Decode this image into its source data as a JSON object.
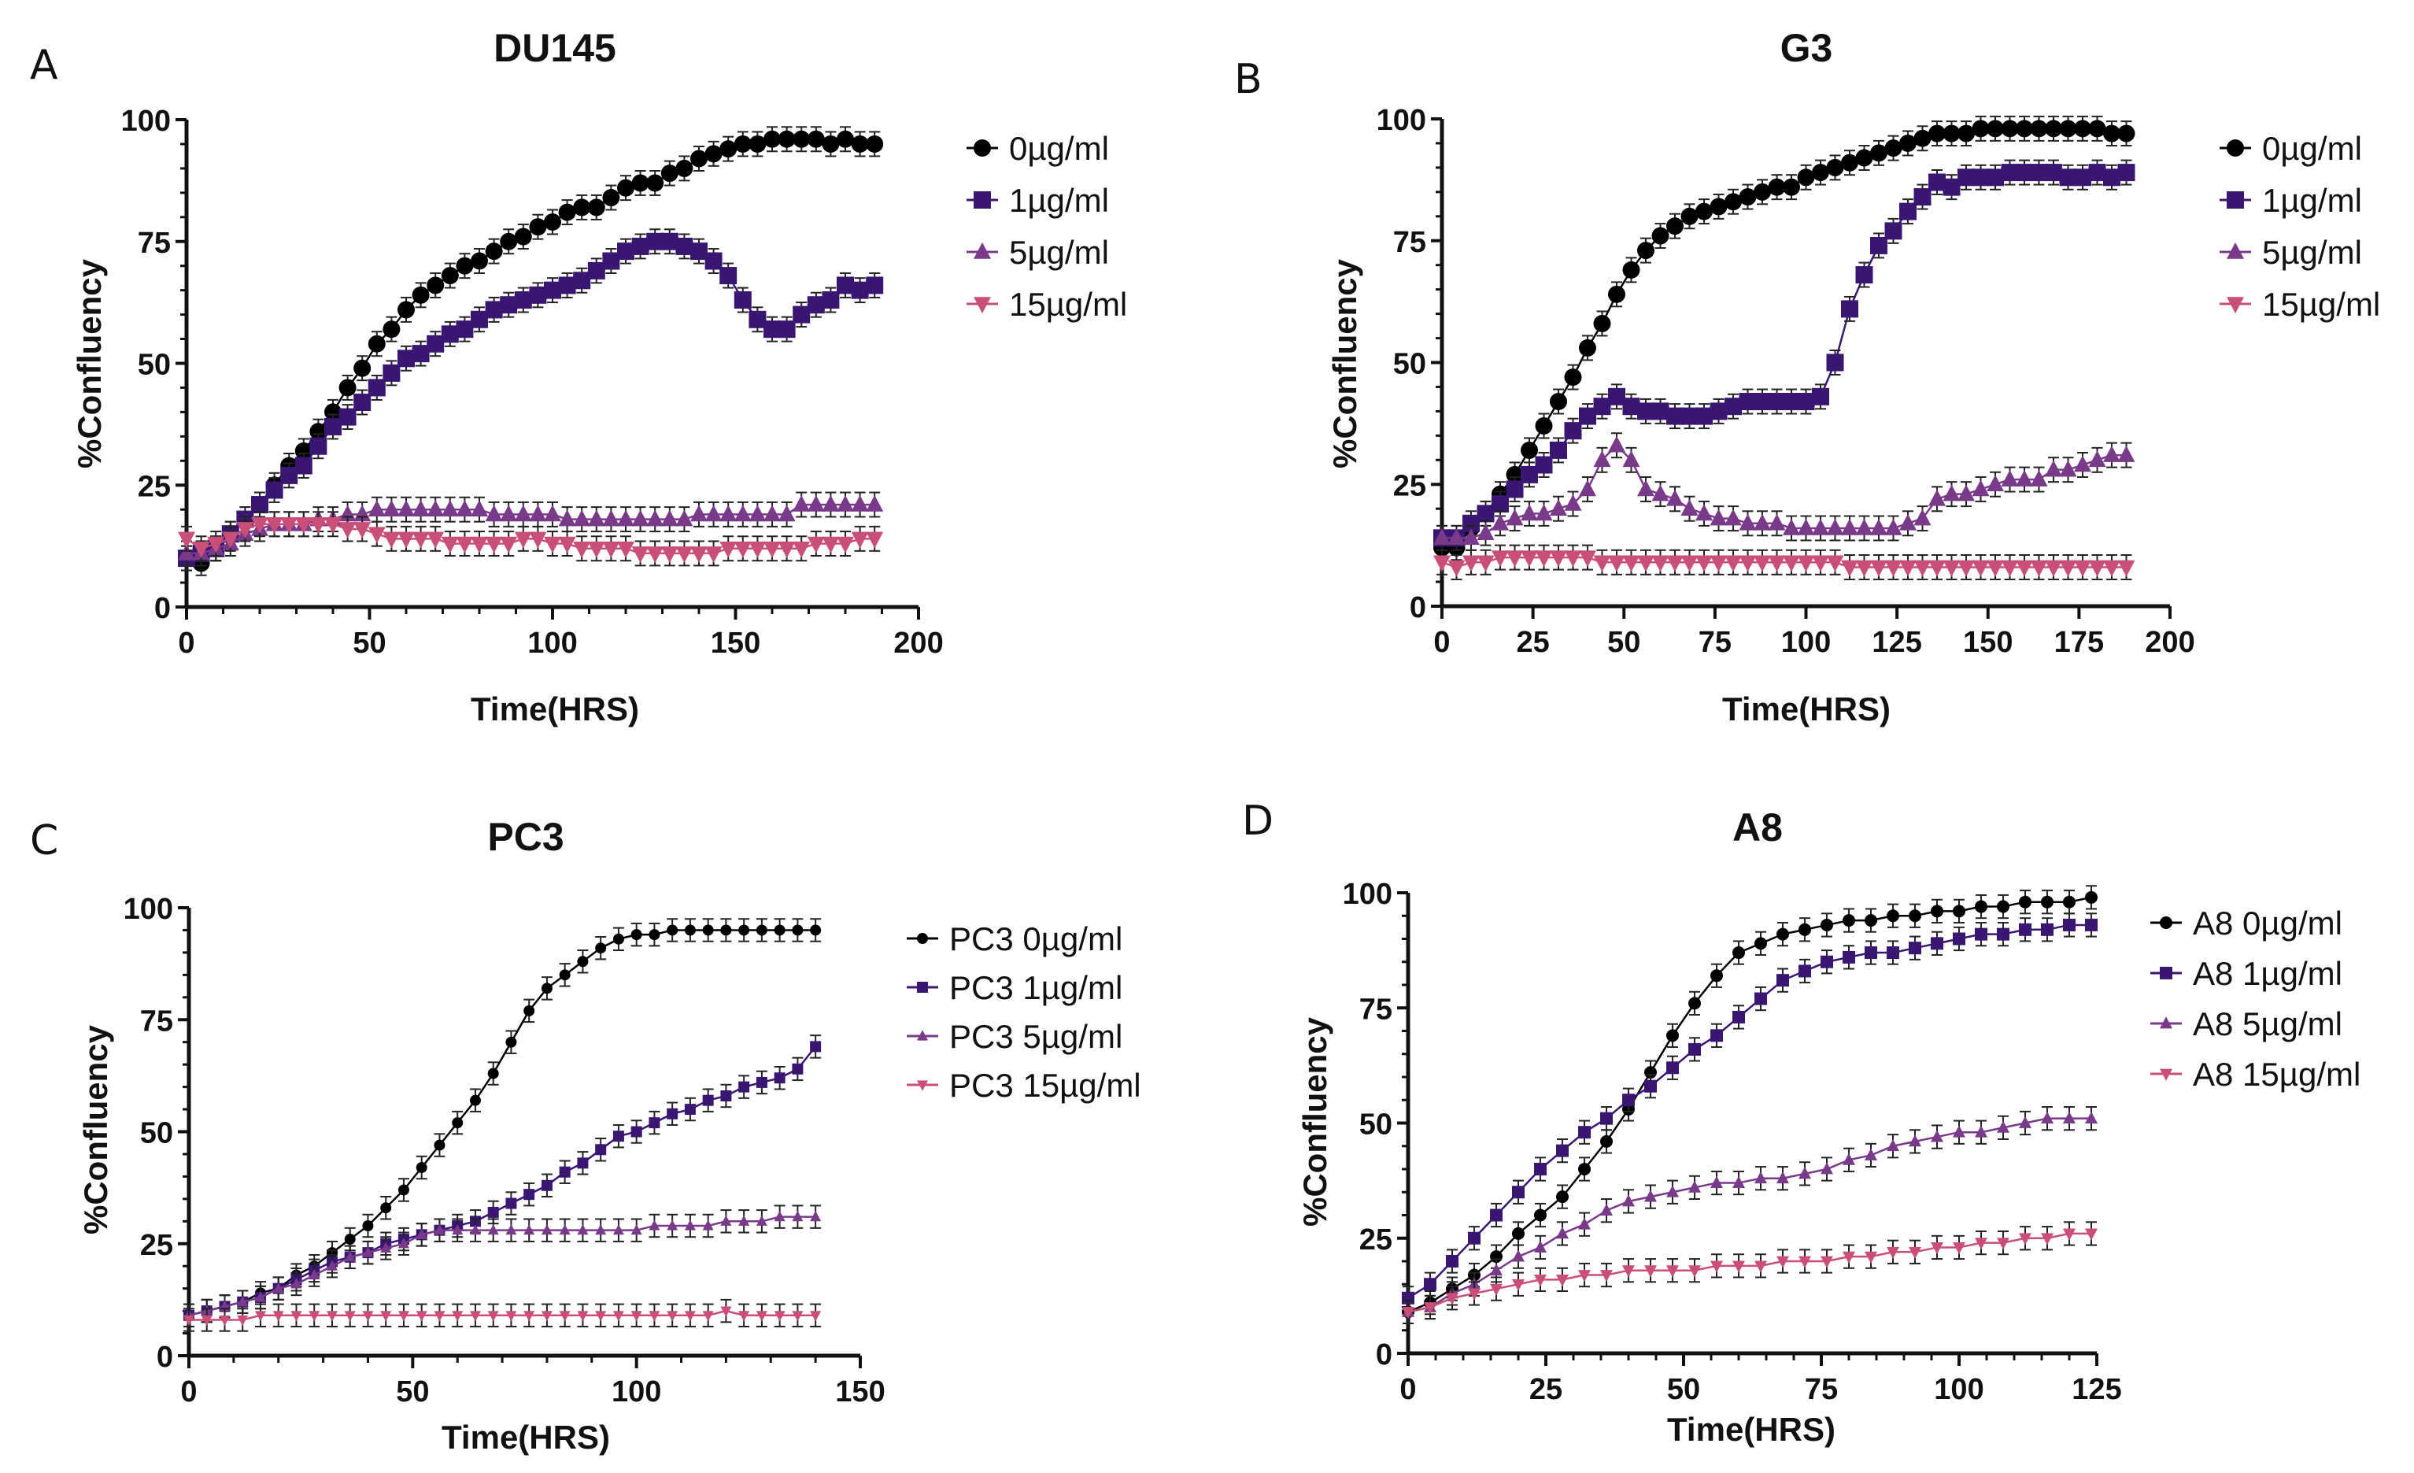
{
  "figure": {
    "colors": {
      "0": "#000000",
      "1": "#3a1673",
      "5": "#7a3a8a",
      "15": "#c94f78"
    }
  },
  "chart_data": [
    {
      "panel": "A",
      "type": "line",
      "title": "DU145",
      "xlabel": "Time(HRS)",
      "ylabel": "%Confluency",
      "xlim": [
        0,
        200
      ],
      "ylim": [
        0,
        100
      ],
      "xticks": [
        "0",
        "50",
        "100",
        "150",
        "200"
      ],
      "yticks": [
        "0",
        "25",
        "50",
        "75",
        "100"
      ],
      "legend_position": "right",
      "x_step": 4,
      "error_bars": true,
      "series": [
        {
          "name": "0µg/ml",
          "marker": "circle",
          "color": "#000000",
          "values": [
            10,
            9,
            12,
            15,
            18,
            21,
            25,
            29,
            32,
            36,
            40,
            45,
            49,
            54,
            57,
            61,
            64,
            66,
            68,
            70,
            71,
            73,
            75,
            76,
            78,
            79,
            81,
            82,
            82,
            84,
            86,
            87,
            87,
            89,
            90,
            92,
            93,
            94,
            95,
            95,
            96,
            96,
            96,
            96,
            95,
            96,
            95,
            95
          ]
        },
        {
          "name": "1µg/ml",
          "marker": "square",
          "color": "#3a1673",
          "values": [
            10,
            11,
            12,
            15,
            18,
            21,
            24,
            27,
            29,
            33,
            37,
            39,
            42,
            45,
            48,
            51,
            52,
            54,
            56,
            57,
            59,
            61,
            62,
            63,
            64,
            65,
            66,
            67,
            69,
            71,
            73,
            74,
            75,
            75,
            74,
            73,
            71,
            68,
            63,
            59,
            57,
            57,
            60,
            62,
            63,
            66,
            65,
            66
          ]
        },
        {
          "name": "5µg/ml",
          "marker": "triangle-up",
          "color": "#7a3a8a",
          "values": [
            11,
            11,
            12,
            13,
            15,
            16,
            17,
            17,
            17,
            18,
            18,
            19,
            19,
            20,
            20,
            20,
            20,
            20,
            20,
            20,
            20,
            19,
            19,
            19,
            19,
            19,
            18,
            18,
            18,
            18,
            18,
            18,
            18,
            18,
            18,
            19,
            19,
            19,
            19,
            19,
            19,
            19,
            21,
            21,
            21,
            21,
            21,
            21
          ]
        },
        {
          "name": "15µg/ml",
          "marker": "triangle-down",
          "color": "#c94f78",
          "values": [
            14,
            12,
            13,
            14,
            16,
            17,
            17,
            17,
            17,
            17,
            17,
            16,
            16,
            15,
            14,
            14,
            14,
            14,
            13,
            13,
            13,
            13,
            13,
            14,
            14,
            13,
            13,
            12,
            12,
            12,
            12,
            11,
            11,
            11,
            11,
            11,
            11,
            12,
            12,
            12,
            12,
            12,
            12,
            13,
            13,
            13,
            14,
            14
          ]
        }
      ]
    },
    {
      "panel": "B",
      "type": "line",
      "title": "G3",
      "xlabel": "Time(HRS)",
      "ylabel": "%Confluency",
      "xlim": [
        0,
        200
      ],
      "ylim": [
        0,
        100
      ],
      "xticks": [
        "0",
        "25",
        "50",
        "75",
        "100",
        "125",
        "150",
        "175",
        "200"
      ],
      "yticks": [
        "0",
        "25",
        "50",
        "75",
        "100"
      ],
      "legend_position": "right",
      "x_step": 4,
      "error_bars": true,
      "series": [
        {
          "name": "0µg/ml",
          "marker": "circle",
          "color": "#000000",
          "values": [
            12,
            12,
            16,
            19,
            23,
            27,
            32,
            37,
            42,
            47,
            53,
            58,
            64,
            69,
            73,
            76,
            78,
            80,
            81,
            82,
            83,
            84,
            85,
            86,
            86,
            88,
            89,
            90,
            91,
            92,
            93,
            94,
            95,
            96,
            97,
            97,
            97,
            98,
            98,
            98,
            98,
            98,
            98,
            98,
            98,
            98,
            97,
            97
          ]
        },
        {
          "name": "1µg/ml",
          "marker": "square",
          "color": "#3a1673",
          "values": [
            14,
            14,
            17,
            19,
            21,
            24,
            27,
            29,
            32,
            36,
            39,
            41,
            43,
            41,
            40,
            40,
            39,
            39,
            39,
            40,
            41,
            42,
            42,
            42,
            42,
            42,
            43,
            50,
            61,
            68,
            74,
            77,
            81,
            84,
            87,
            86,
            88,
            88,
            88,
            89,
            89,
            89,
            89,
            88,
            88,
            89,
            88,
            89
          ]
        },
        {
          "name": "5µg/ml",
          "marker": "triangle-up",
          "color": "#7a3a8a",
          "values": [
            14,
            14,
            14,
            15,
            17,
            18,
            19,
            19,
            20,
            21,
            24,
            30,
            33,
            30,
            24,
            23,
            22,
            20,
            19,
            18,
            18,
            17,
            17,
            17,
            16,
            16,
            16,
            16,
            16,
            16,
            16,
            16,
            17,
            18,
            22,
            23,
            23,
            24,
            25,
            26,
            26,
            26,
            28,
            28,
            29,
            30,
            31,
            31
          ]
        },
        {
          "name": "15µg/ml",
          "marker": "triangle-down",
          "color": "#c94f78",
          "values": [
            9,
            8,
            9,
            9,
            10,
            10,
            10,
            10,
            10,
            10,
            10,
            9,
            9,
            9,
            9,
            9,
            9,
            9,
            9,
            9,
            9,
            9,
            9,
            9,
            9,
            9,
            9,
            9,
            8,
            8,
            8,
            8,
            8,
            8,
            8,
            8,
            8,
            8,
            8,
            8,
            8,
            8,
            8,
            8,
            8,
            8,
            8,
            8
          ]
        }
      ]
    },
    {
      "panel": "C",
      "type": "line",
      "title": "PC3",
      "xlabel": "Time(HRS)",
      "ylabel": "%Confluency",
      "xlim": [
        0,
        150
      ],
      "ylim": [
        0,
        100
      ],
      "xticks": [
        "0",
        "50",
        "100",
        "150"
      ],
      "yticks": [
        "0",
        "25",
        "50",
        "75",
        "100"
      ],
      "legend_position": "right",
      "x_step": 4,
      "error_bars": true,
      "series": [
        {
          "name": "PC3 0µg/ml",
          "marker": "circle",
          "color": "#000000",
          "values": [
            9,
            10,
            11,
            12,
            14,
            15,
            18,
            20,
            23,
            26,
            29,
            33,
            37,
            42,
            47,
            52,
            57,
            63,
            70,
            77,
            82,
            85,
            88,
            91,
            93,
            94,
            94,
            95,
            95,
            95,
            95,
            95,
            95,
            95,
            95,
            95
          ]
        },
        {
          "name": "PC3 1µg/ml",
          "marker": "square",
          "color": "#3a1673",
          "values": [
            9,
            10,
            11,
            12,
            13,
            15,
            17,
            19,
            21,
            22,
            23,
            25,
            26,
            27,
            28,
            29,
            30,
            32,
            34,
            36,
            38,
            41,
            43,
            46,
            49,
            50,
            52,
            54,
            55,
            57,
            58,
            60,
            61,
            62,
            64,
            69
          ]
        },
        {
          "name": "PC3 5µg/ml",
          "marker": "triangle-up",
          "color": "#7a3a8a",
          "values": [
            9,
            10,
            11,
            12,
            13,
            15,
            16,
            18,
            20,
            22,
            23,
            24,
            25,
            27,
            28,
            28,
            28,
            28,
            28,
            28,
            28,
            28,
            28,
            28,
            28,
            28,
            29,
            29,
            29,
            29,
            30,
            30,
            30,
            31,
            31,
            31
          ]
        },
        {
          "name": "PC3 15µg/ml",
          "marker": "triangle-down",
          "color": "#c94f78",
          "values": [
            8,
            8,
            8,
            8,
            9,
            9,
            9,
            9,
            9,
            9,
            9,
            9,
            9,
            9,
            9,
            9,
            9,
            9,
            9,
            9,
            9,
            9,
            9,
            9,
            9,
            9,
            9,
            9,
            9,
            9,
            10,
            9,
            9,
            9,
            9,
            9
          ]
        }
      ]
    },
    {
      "panel": "D",
      "type": "line",
      "title": "A8",
      "xlabel": "Time(HRS)",
      "ylabel": "%Confluency",
      "xlim": [
        0,
        125
      ],
      "ylim": [
        0,
        100
      ],
      "xticks": [
        "0",
        "25",
        "50",
        "75",
        "100",
        "125"
      ],
      "yticks": [
        "0",
        "25",
        "50",
        "75",
        "100"
      ],
      "legend_position": "right",
      "x_step": 4,
      "error_bars": true,
      "series": [
        {
          "name": "A8 0µg/ml",
          "marker": "circle",
          "color": "#000000",
          "values": [
            9,
            11,
            14,
            17,
            21,
            26,
            30,
            34,
            40,
            46,
            53,
            61,
            69,
            76,
            82,
            87,
            89,
            91,
            92,
            93,
            94,
            94,
            95,
            95,
            96,
            96,
            97,
            97,
            98,
            98,
            98,
            99
          ]
        },
        {
          "name": "A8 1µg/ml",
          "marker": "square",
          "color": "#3a1673",
          "values": [
            12,
            15,
            20,
            25,
            30,
            35,
            40,
            44,
            48,
            51,
            55,
            58,
            62,
            66,
            69,
            73,
            77,
            81,
            83,
            85,
            86,
            87,
            87,
            88,
            89,
            90,
            91,
            91,
            92,
            92,
            93,
            93
          ]
        },
        {
          "name": "A8 5µg/ml",
          "marker": "triangle-up",
          "color": "#7a3a8a",
          "values": [
            9,
            10,
            13,
            15,
            18,
            21,
            23,
            26,
            28,
            31,
            33,
            34,
            35,
            36,
            37,
            37,
            38,
            38,
            39,
            40,
            42,
            43,
            45,
            46,
            47,
            48,
            48,
            49,
            50,
            51,
            51,
            51
          ]
        },
        {
          "name": "A8 15µg/ml",
          "marker": "triangle-down",
          "color": "#c94f78",
          "values": [
            9,
            10,
            12,
            13,
            14,
            15,
            16,
            16,
            17,
            17,
            18,
            18,
            18,
            18,
            19,
            19,
            19,
            20,
            20,
            20,
            21,
            21,
            22,
            22,
            23,
            23,
            24,
            24,
            25,
            25,
            26,
            26
          ]
        }
      ]
    }
  ]
}
